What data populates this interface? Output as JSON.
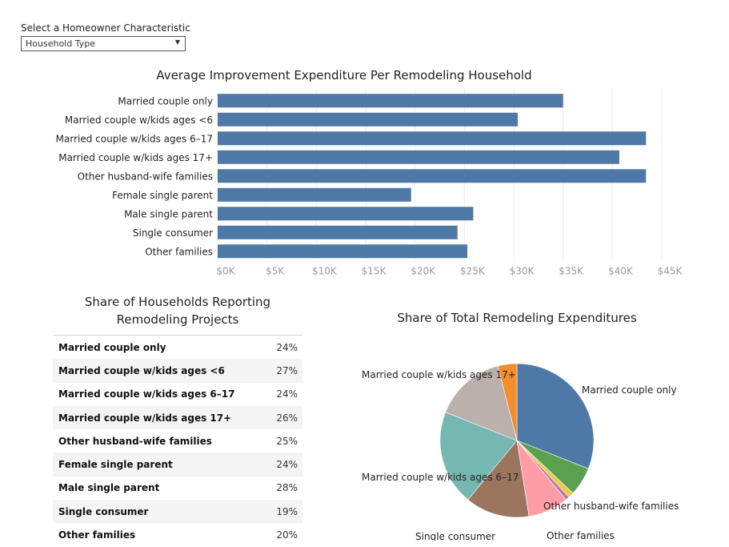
{
  "filter": {
    "label": "Select a Homeowner Characteristic",
    "selected": "Household Type"
  },
  "bar_chart": {
    "title": "Average Improvement Expenditure Per Remodeling Household"
  },
  "table": {
    "title_line1": "Share of Households Reporting",
    "title_line2": "Remodeling Projects",
    "rows": [
      {
        "label": "Married couple only",
        "value": "24%"
      },
      {
        "label": "Married couple w/kids ages <6",
        "value": "27%"
      },
      {
        "label": "Married couple w/kids ages 6–17",
        "value": "24%"
      },
      {
        "label": "Married couple w/kids ages 17+",
        "value": "26%"
      },
      {
        "label": "Other husband-wife families",
        "value": "25%"
      },
      {
        "label": "Female single parent",
        "value": "24%"
      },
      {
        "label": "Male single parent",
        "value": "28%"
      },
      {
        "label": "Single consumer",
        "value": "19%"
      },
      {
        "label": "Other families",
        "value": "20%"
      }
    ]
  },
  "pie_chart": {
    "title": "Share of Total Remodeling Expenditures"
  },
  "chart_data": [
    {
      "type": "bar",
      "orientation": "horizontal",
      "title": "Average Improvement Expenditure Per Remodeling Household",
      "categories": [
        "Married couple only",
        "Married couple w/kids ages <6",
        "Married couple w/kids ages 6–17",
        "Married couple w/kids ages 17+",
        "Other husband-wife families",
        "Female single parent",
        "Male single parent",
        "Single consumer",
        "Other families"
      ],
      "values": [
        35000,
        30400,
        43400,
        40700,
        43400,
        19600,
        25900,
        24300,
        25300
      ],
      "xlim": [
        0,
        45000
      ],
      "ticks": [
        0,
        5000,
        10000,
        15000,
        20000,
        25000,
        30000,
        35000,
        40000,
        45000
      ],
      "tick_labels": [
        "$0K",
        "$5K",
        "$10K",
        "$15K",
        "$20K",
        "$25K",
        "$30K",
        "$35K",
        "$40K",
        "$45K"
      ],
      "grid": true,
      "color": "#4e79a7"
    },
    {
      "type": "pie",
      "title": "Share of Total Remodeling Expenditures",
      "slices": [
        {
          "name": "Married couple only",
          "value": 31.0,
          "color": "#4e79a7",
          "label": "Married couple only"
        },
        {
          "name": "Married couple w/kids ages <6",
          "value": 6.0,
          "color": "#59a14f",
          "label": ""
        },
        {
          "name": "Female single parent",
          "value": 1.2,
          "color": "#edc948",
          "label": ""
        },
        {
          "name": "Male single parent",
          "value": 0.8,
          "color": "#b07aa1",
          "label": ""
        },
        {
          "name": "Other husband-wife families",
          "value": 8.5,
          "color": "#ff9da7",
          "label": "Other husband-wife families"
        },
        {
          "name": "Other families",
          "value": 13.5,
          "color": "#9c755f",
          "label": "Other families"
        },
        {
          "name": "Married couple w/kids ages 6–17",
          "value": 20.0,
          "color": "#76b7b2",
          "label": "Married couple w/kids ages 6–17"
        },
        {
          "name": "Single consumer",
          "value": 15.0,
          "color": "#bab0ac",
          "label": "Single consumer"
        },
        {
          "name": "Married couple w/kids ages 17+",
          "value": 4.0,
          "color": "#f28e2b",
          "label": "Married couple w/kids ages 17+"
        }
      ]
    }
  ]
}
